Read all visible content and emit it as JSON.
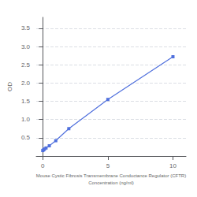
{
  "chart_data": {
    "type": "line",
    "xlabel": "Mouse Cystic Fibrosis Transmembrane Conductance Regulator (CFTR)\nConcentration (ng/ml)",
    "ylabel": "OD",
    "x": [
      0,
      0.0625,
      0.125,
      0.25,
      0.5,
      1,
      2,
      5,
      10
    ],
    "values": [
      0.15,
      0.17,
      0.19,
      0.22,
      0.28,
      0.42,
      0.75,
      1.55,
      2.72
    ],
    "xlim": [
      -0.5,
      11
    ],
    "xticks": [
      0,
      5,
      10
    ],
    "ylim": [
      0,
      3.8
    ],
    "yticks": [
      0.5,
      {
        "value": 1,
        "label": "1.0"
      },
      1.5,
      {
        "value": 2,
        "label": "2.0"
      },
      2.5,
      {
        "value": 3,
        "label": "3.0"
      },
      3.5
    ],
    "marker": "square",
    "grid": true
  }
}
